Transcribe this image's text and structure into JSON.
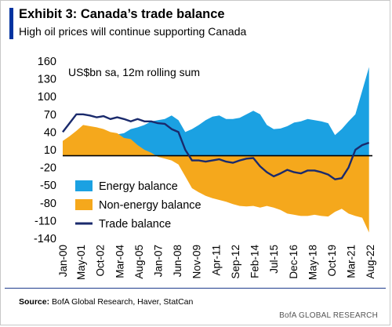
{
  "header": {
    "title": "Exhibit 3: Canada’s trade balance",
    "subtitle": "High oil prices will continue supporting Canada"
  },
  "unit_label": "US$bn sa, 12m rolling sum",
  "footer": {
    "source_label": "Source:",
    "source_text": "BofA Global Research, Haver, StatCan",
    "brand": "BofA GLOBAL RESEARCH"
  },
  "colors": {
    "energy": "#1ba1e2",
    "non_energy": "#f5a81c",
    "trade": "#1a2a6c",
    "zero_line": "#000000"
  },
  "chart_data": {
    "type": "area",
    "ylim": [
      -140,
      160
    ],
    "yticks": [
      160,
      130,
      100,
      70,
      40,
      10,
      -20,
      -50,
      -80,
      -110,
      -140
    ],
    "xlim": [
      2000.0,
      2022.75
    ],
    "xticks": [
      {
        "label": "Jan-00",
        "x": 2000.0
      },
      {
        "label": "May-01",
        "x": 2001.33
      },
      {
        "label": "Oct-02",
        "x": 2002.75
      },
      {
        "label": "Mar-04",
        "x": 2004.17
      },
      {
        "label": "Aug-05",
        "x": 2005.58
      },
      {
        "label": "Jan-07",
        "x": 2007.0
      },
      {
        "label": "Jun-08",
        "x": 2008.42
      },
      {
        "label": "Nov-09",
        "x": 2009.83
      },
      {
        "label": "Apr-11",
        "x": 2011.25
      },
      {
        "label": "Sep-12",
        "x": 2012.67
      },
      {
        "label": "Feb-14",
        "x": 2014.08
      },
      {
        "label": "Jul-15",
        "x": 2015.5
      },
      {
        "label": "Dec-16",
        "x": 2016.92
      },
      {
        "label": "May-18",
        "x": 2018.33
      },
      {
        "label": "Oct-19",
        "x": 2019.75
      },
      {
        "label": "Mar-21",
        "x": 2021.17
      },
      {
        "label": "Aug-22",
        "x": 2022.58
      }
    ],
    "legend": [
      "Energy balance",
      "Non-energy balance",
      "Trade balance"
    ],
    "legend_position": "bottom-left",
    "x": [
      2000.0,
      2000.5,
      2001.0,
      2001.5,
      2002.0,
      2002.5,
      2003.0,
      2003.5,
      2004.0,
      2004.5,
      2005.0,
      2005.5,
      2006.0,
      2006.5,
      2007.0,
      2007.5,
      2008.0,
      2008.5,
      2009.0,
      2009.5,
      2010.0,
      2010.5,
      2011.0,
      2011.5,
      2012.0,
      2012.5,
      2013.0,
      2013.5,
      2014.0,
      2014.5,
      2015.0,
      2015.5,
      2016.0,
      2016.5,
      2017.0,
      2017.5,
      2018.0,
      2018.5,
      2019.0,
      2019.5,
      2020.0,
      2020.5,
      2021.0,
      2021.5,
      2022.0,
      2022.5
    ],
    "series": [
      {
        "name": "Energy balance",
        "values": [
          15,
          20,
          26,
          24,
          18,
          22,
          30,
          32,
          36,
          38,
          45,
          48,
          52,
          58,
          60,
          62,
          68,
          60,
          40,
          45,
          52,
          60,
          66,
          68,
          62,
          62,
          64,
          70,
          76,
          70,
          52,
          45,
          46,
          50,
          56,
          58,
          62,
          60,
          58,
          55,
          35,
          45,
          58,
          70,
          110,
          150
        ]
      },
      {
        "name": "Non-energy balance",
        "values": [
          25,
          33,
          42,
          52,
          50,
          48,
          45,
          40,
          38,
          30,
          28,
          18,
          10,
          5,
          -2,
          -5,
          -8,
          -15,
          -35,
          -55,
          -62,
          -68,
          -72,
          -75,
          -78,
          -82,
          -85,
          -86,
          -85,
          -88,
          -85,
          -88,
          -92,
          -98,
          -100,
          -102,
          -102,
          -100,
          -102,
          -103,
          -95,
          -90,
          -98,
          -102,
          -105,
          -130
        ]
      },
      {
        "name": "Trade balance",
        "values": [
          40,
          55,
          70,
          70,
          68,
          65,
          67,
          62,
          65,
          62,
          58,
          62,
          58,
          58,
          55,
          54,
          45,
          40,
          10,
          -8,
          -8,
          -10,
          -8,
          -6,
          -10,
          -12,
          -8,
          -5,
          -4,
          -18,
          -28,
          -35,
          -30,
          -24,
          -28,
          -30,
          -25,
          -25,
          -28,
          -32,
          -40,
          -38,
          -20,
          10,
          18,
          22
        ]
      }
    ]
  }
}
